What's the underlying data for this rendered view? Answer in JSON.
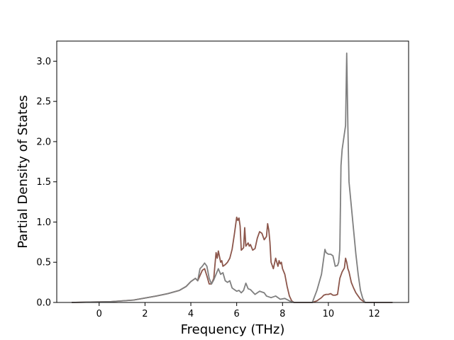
{
  "chart_data": {
    "type": "line",
    "title": "",
    "xlabel": "Frequency (THz)",
    "ylabel": "Partial Density of States",
    "xlim": [
      -1.85,
      13.5
    ],
    "ylim": [
      0,
      3.25
    ],
    "xticks": [
      0,
      2,
      4,
      6,
      8,
      10,
      12
    ],
    "xtick_labels": [
      "0",
      "2",
      "4",
      "6",
      "8",
      "10",
      "12"
    ],
    "yticks": [
      0.0,
      0.5,
      1.0,
      1.5,
      2.0,
      2.5,
      3.0
    ],
    "ytick_labels": [
      "0.0",
      "0.5",
      "1.0",
      "1.5",
      "2.0",
      "2.5",
      "3.0"
    ],
    "grid": false,
    "legend": "none",
    "series": [
      {
        "color": "#8c564b",
        "x": [
          -1.2,
          0.5,
          1.5,
          2.5,
          3.0,
          3.5,
          3.8,
          4.0,
          4.2,
          4.3,
          4.5,
          4.6,
          4.7,
          4.8,
          4.9,
          5.0,
          5.1,
          5.15,
          5.2,
          5.3,
          5.35,
          5.4,
          5.5,
          5.6,
          5.7,
          5.8,
          5.9,
          6.0,
          6.05,
          6.1,
          6.15,
          6.2,
          6.3,
          6.35,
          6.4,
          6.5,
          6.55,
          6.6,
          6.7,
          6.8,
          6.9,
          7.0,
          7.1,
          7.2,
          7.3,
          7.35,
          7.4,
          7.45,
          7.5,
          7.6,
          7.7,
          7.8,
          7.85,
          7.9,
          7.95,
          8.0,
          8.1,
          8.2,
          8.3,
          8.4,
          8.5,
          8.6,
          8.7,
          9.0,
          9.3,
          9.5,
          9.7,
          9.8,
          9.9,
          10.0,
          10.1,
          10.2,
          10.3,
          10.4,
          10.5,
          10.6,
          10.7,
          10.75,
          10.8,
          10.85,
          10.9,
          11.0,
          11.1,
          11.2,
          11.3,
          11.4,
          11.5,
          11.6,
          11.7,
          12.8
        ],
        "y": [
          0.0,
          0.01,
          0.03,
          0.08,
          0.11,
          0.15,
          0.2,
          0.26,
          0.3,
          0.27,
          0.4,
          0.42,
          0.33,
          0.23,
          0.23,
          0.3,
          0.62,
          0.55,
          0.64,
          0.5,
          0.52,
          0.45,
          0.47,
          0.5,
          0.55,
          0.66,
          0.85,
          1.06,
          1.02,
          1.05,
          0.95,
          0.65,
          0.68,
          0.93,
          0.7,
          0.74,
          0.7,
          0.72,
          0.65,
          0.67,
          0.8,
          0.88,
          0.86,
          0.78,
          0.82,
          0.98,
          0.9,
          0.75,
          0.5,
          0.42,
          0.55,
          0.45,
          0.52,
          0.48,
          0.5,
          0.42,
          0.35,
          0.2,
          0.08,
          0.02,
          0.0,
          0.0,
          0.0,
          0.0,
          0.0,
          0.02,
          0.06,
          0.09,
          0.1,
          0.1,
          0.11,
          0.09,
          0.09,
          0.1,
          0.3,
          0.38,
          0.43,
          0.55,
          0.5,
          0.42,
          0.38,
          0.25,
          0.18,
          0.12,
          0.08,
          0.04,
          0.02,
          0.0,
          0.0,
          0.0
        ]
      },
      {
        "color": "#7f7f7f",
        "x": [
          -1.2,
          0.5,
          1.5,
          2.5,
          3.0,
          3.5,
          3.8,
          4.0,
          4.2,
          4.3,
          4.4,
          4.5,
          4.6,
          4.7,
          4.8,
          4.9,
          5.0,
          5.1,
          5.2,
          5.3,
          5.4,
          5.5,
          5.6,
          5.7,
          5.8,
          5.9,
          6.0,
          6.1,
          6.2,
          6.3,
          6.4,
          6.5,
          6.6,
          6.7,
          6.8,
          7.0,
          7.2,
          7.3,
          7.5,
          7.7,
          7.9,
          8.1,
          8.3,
          8.5,
          8.7,
          9.0,
          9.3,
          9.5,
          9.7,
          9.85,
          9.9,
          10.0,
          10.1,
          10.2,
          10.3,
          10.4,
          10.45,
          10.5,
          10.55,
          10.6,
          10.7,
          10.75,
          10.8,
          10.85,
          10.9,
          11.0,
          11.1,
          11.2,
          11.3,
          11.4,
          11.5,
          11.6,
          11.7,
          12.8
        ],
        "y": [
          0.0,
          0.01,
          0.03,
          0.08,
          0.11,
          0.15,
          0.2,
          0.26,
          0.3,
          0.27,
          0.42,
          0.45,
          0.49,
          0.45,
          0.3,
          0.23,
          0.28,
          0.35,
          0.42,
          0.35,
          0.37,
          0.27,
          0.25,
          0.27,
          0.18,
          0.16,
          0.14,
          0.15,
          0.12,
          0.15,
          0.24,
          0.17,
          0.16,
          0.13,
          0.1,
          0.14,
          0.12,
          0.08,
          0.06,
          0.08,
          0.04,
          0.05,
          0.02,
          0.0,
          0.0,
          0.0,
          0.0,
          0.15,
          0.35,
          0.66,
          0.62,
          0.6,
          0.6,
          0.58,
          0.45,
          0.46,
          0.5,
          0.66,
          1.7,
          1.9,
          2.1,
          2.2,
          3.1,
          2.2,
          1.5,
          1.2,
          0.9,
          0.6,
          0.35,
          0.15,
          0.05,
          0.0,
          0.0,
          0.0
        ]
      }
    ]
  }
}
